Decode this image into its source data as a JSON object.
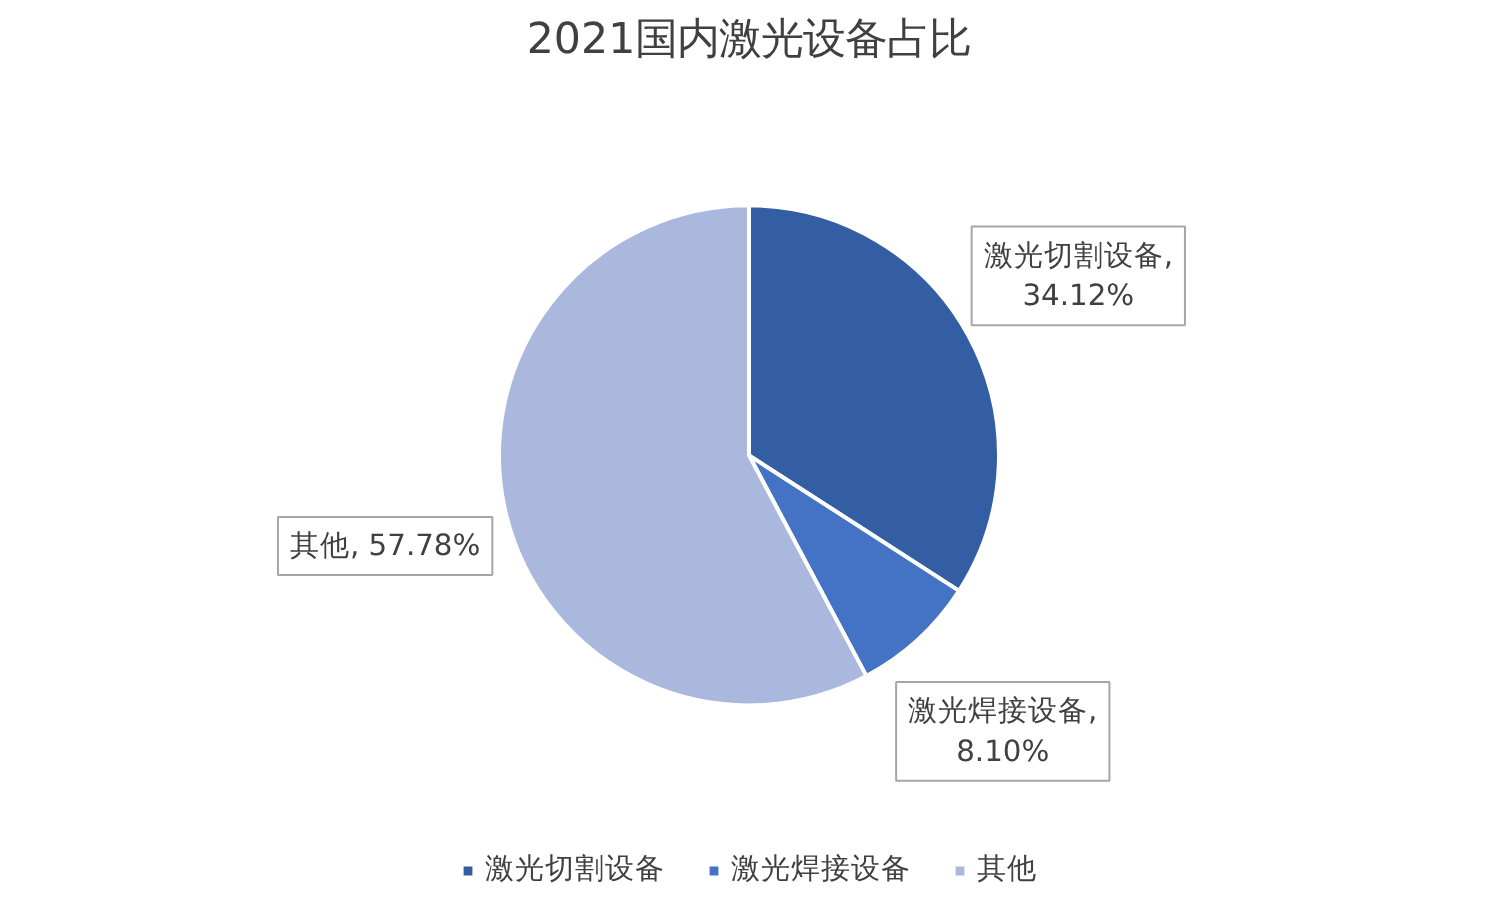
{
  "chart_data": {
    "type": "pie",
    "title": "2021国内激光设备占比",
    "categories": [
      "激光切割设备",
      "激光焊接设备",
      "其他"
    ],
    "values": [
      34.12,
      8.1,
      57.78
    ],
    "value_labels": [
      "激光切割设备, 34.12%",
      "激光焊接设备, 8.10%",
      "其他, 57.78%"
    ],
    "colors": [
      "#345ea3",
      "#4472c4",
      "#a9b8dc"
    ],
    "legend": "bottom"
  }
}
